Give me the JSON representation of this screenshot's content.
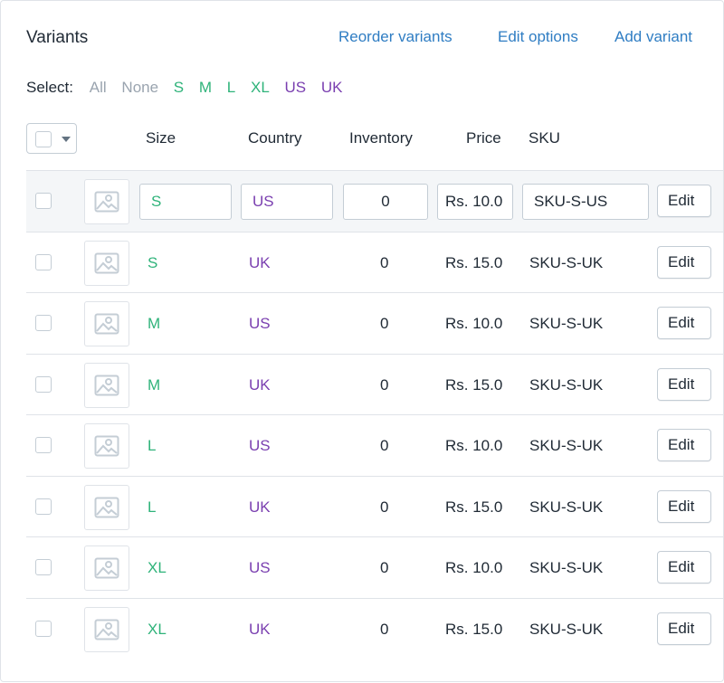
{
  "header": {
    "title": "Variants",
    "reorder_label": "Reorder variants",
    "edit_options_label": "Edit options",
    "add_variant_label": "Add variant"
  },
  "select": {
    "label": "Select:",
    "options": [
      "All",
      "None",
      "S",
      "M",
      "L",
      "XL",
      "US",
      "UK"
    ]
  },
  "columns": {
    "size": "Size",
    "country": "Country",
    "inventory": "Inventory",
    "price": "Price",
    "sku": "SKU"
  },
  "edit_label": "Edit",
  "rows": [
    {
      "size": "S",
      "country": "US",
      "inventory": "0",
      "price": "Rs. 10.0",
      "sku": "SKU-S-US"
    },
    {
      "size": "S",
      "country": "UK",
      "inventory": "0",
      "price": "Rs. 15.0",
      "sku": "SKU-S-UK"
    },
    {
      "size": "M",
      "country": "US",
      "inventory": "0",
      "price": "Rs. 10.0",
      "sku": "SKU-S-UK"
    },
    {
      "size": "M",
      "country": "UK",
      "inventory": "0",
      "price": "Rs. 15.0",
      "sku": "SKU-S-UK"
    },
    {
      "size": "L",
      "country": "US",
      "inventory": "0",
      "price": "Rs. 10.0",
      "sku": "SKU-S-UK"
    },
    {
      "size": "L",
      "country": "UK",
      "inventory": "0",
      "price": "Rs. 15.0",
      "sku": "SKU-S-UK"
    },
    {
      "size": "XL",
      "country": "US",
      "inventory": "0",
      "price": "Rs. 10.0",
      "sku": "SKU-S-UK"
    },
    {
      "size": "XL",
      "country": "UK",
      "inventory": "0",
      "price": "Rs. 15.0",
      "sku": "SKU-S-UK"
    }
  ],
  "colors": {
    "link": "#2f7dc3",
    "size": "#2fb37a",
    "country": "#7a3fb0",
    "muted": "#9aa4af"
  }
}
